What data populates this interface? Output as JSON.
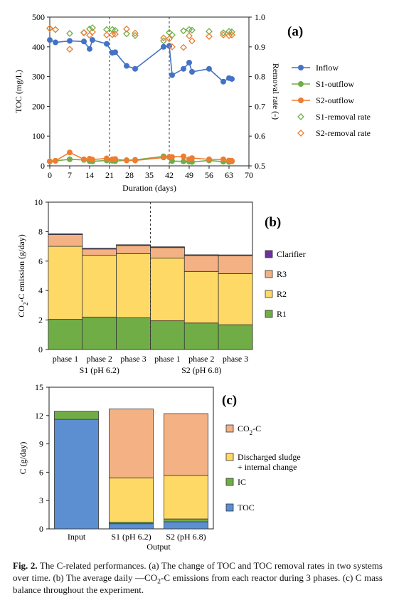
{
  "colors": {
    "inflow": "#4472c4",
    "s1_outflow": "#70ad47",
    "s2_outflow": "#ed7d31",
    "s1_removal": "#70ad47",
    "s2_removal": "#ed7d31",
    "R1": "#70ad47",
    "R2": "#ffd966",
    "R3": "#f4b183",
    "Clarifier": "#7030a0",
    "TOC": "#5b8fd1",
    "IC": "#70ad47",
    "sludge": "#ffd966",
    "CO2C": "#f4b183"
  },
  "chart_data": [
    {
      "type": "scatter",
      "panel": "(a)",
      "xlabel": "Duration (days)",
      "ylabel": "TOC (mg/L)",
      "y2label": "Removal rate (-)",
      "xlim": [
        0,
        70
      ],
      "xticks": [
        "0",
        "7",
        "14",
        "21",
        "28",
        "35",
        "42",
        "49",
        "56",
        "63",
        "70"
      ],
      "ylim": [
        0,
        500
      ],
      "yticks": [
        "0",
        "100",
        "200",
        "300",
        "400",
        "500"
      ],
      "y2lim": [
        0.5,
        1.0
      ],
      "y2ticks": [
        "0.5",
        "0.6",
        "0.7",
        "0.8",
        "0.9",
        "1.0"
      ],
      "phase_lines_x": [
        21,
        42
      ],
      "legend": [
        "Inflow",
        "S1-outflow",
        "S2-outflow",
        "S1-removal rate",
        "S2-removal rate"
      ],
      "series": [
        {
          "name": "Inflow",
          "axis": "left",
          "style": "line-marker",
          "x": [
            0,
            2,
            7,
            12,
            14,
            15,
            20,
            22,
            23,
            27,
            30,
            40,
            42,
            43,
            47,
            49,
            50,
            56,
            61,
            63,
            64
          ],
          "y": [
            423,
            415,
            420,
            418,
            393,
            423,
            410,
            380,
            382,
            336,
            326,
            400,
            403,
            305,
            326,
            347,
            316,
            326,
            283,
            295,
            292
          ]
        },
        {
          "name": "S1-outflow",
          "axis": "left",
          "style": "line-marker",
          "x": [
            0,
            2,
            7,
            12,
            14,
            15,
            20,
            22,
            23,
            27,
            30,
            40,
            42,
            43,
            47,
            49,
            50,
            56,
            61,
            63,
            64
          ],
          "y": [
            15,
            17,
            22,
            20,
            16,
            15,
            18,
            17,
            16,
            19,
            20,
            32,
            29,
            16,
            15,
            14,
            13,
            18,
            14,
            13,
            15
          ]
        },
        {
          "name": "S2-outflow",
          "axis": "left",
          "style": "line-marker",
          "x": [
            0,
            2,
            7,
            12,
            14,
            15,
            20,
            22,
            23,
            27,
            30,
            40,
            42,
            43,
            47,
            49,
            50,
            56,
            61,
            63,
            64
          ],
          "y": [
            15,
            17,
            45,
            22,
            24,
            21,
            25,
            22,
            23,
            18,
            18,
            28,
            30,
            30,
            32,
            22,
            26,
            22,
            22,
            18,
            17
          ]
        },
        {
          "name": "S1-removal rate",
          "axis": "right",
          "style": "diamond",
          "x": [
            0,
            2,
            7,
            12,
            14,
            15,
            20,
            22,
            23,
            27,
            30,
            40,
            42,
            43,
            47,
            49,
            50,
            56,
            61,
            63,
            64
          ],
          "y": [
            0.962,
            0.958,
            0.945,
            0.948,
            0.96,
            0.964,
            0.958,
            0.958,
            0.955,
            0.944,
            0.938,
            0.92,
            0.948,
            0.94,
            0.954,
            0.958,
            0.956,
            0.952,
            0.947,
            0.952,
            0.95
          ]
        },
        {
          "name": "S2-removal rate",
          "axis": "right",
          "style": "diamond",
          "x": [
            0,
            2,
            7,
            12,
            14,
            15,
            20,
            22,
            23,
            27,
            30,
            40,
            42,
            43,
            47,
            49,
            50,
            56,
            61,
            63,
            64
          ],
          "y": [
            0.962,
            0.958,
            0.892,
            0.947,
            0.939,
            0.95,
            0.94,
            0.941,
            0.943,
            0.96,
            0.946,
            0.93,
            0.927,
            0.9,
            0.898,
            0.937,
            0.92,
            0.935,
            0.94,
            0.938,
            0.94
          ]
        }
      ]
    },
    {
      "type": "bar",
      "stacked": true,
      "panel": "(b)",
      "ylabel": "CO₂-C emission (g/day)",
      "ylim": [
        0,
        10
      ],
      "yticks": [
        "0",
        "2",
        "4",
        "6",
        "8",
        "10"
      ],
      "categories": [
        "phase 1",
        "phase 2",
        "phase 3",
        "phase 1",
        "phase 2",
        "phase 3"
      ],
      "groups": [
        "S1 (pH 6.2)",
        "S2 (pH 6.8)"
      ],
      "legend": [
        "Clarifier",
        "R3",
        "R2",
        "R1"
      ],
      "series": [
        {
          "name": "R1",
          "values": [
            2.05,
            2.2,
            2.15,
            1.95,
            1.8,
            1.68
          ]
        },
        {
          "name": "R2",
          "values": [
            4.95,
            4.2,
            4.35,
            4.25,
            3.5,
            3.47
          ]
        },
        {
          "name": "R3",
          "values": [
            0.8,
            0.42,
            0.56,
            0.72,
            1.08,
            1.22
          ]
        },
        {
          "name": "Clarifier",
          "values": [
            0.05,
            0.05,
            0.05,
            0.05,
            0.05,
            0.05
          ]
        }
      ]
    },
    {
      "type": "bar",
      "stacked": true,
      "panel": "(c)",
      "xlabel": "Output",
      "ylabel": "C (g/day)",
      "ylim": [
        0,
        15
      ],
      "yticks": [
        "0",
        "3",
        "6",
        "9",
        "12",
        "15"
      ],
      "categories": [
        "Input",
        "S1 (pH 6.2)",
        "S2 (pH 6.8)"
      ],
      "legend": [
        "CO₂-C",
        "Discharged sludge + internal change",
        "IC",
        "TOC"
      ],
      "series": [
        {
          "name": "TOC",
          "values": [
            11.6,
            0.55,
            0.75
          ]
        },
        {
          "name": "IC",
          "values": [
            0.85,
            0.15,
            0.3
          ]
        },
        {
          "name": "Discharged sludge + internal change",
          "values": [
            0,
            4.7,
            4.6
          ]
        },
        {
          "name": "CO₂-C",
          "values": [
            0,
            7.3,
            6.55
          ]
        }
      ]
    }
  ],
  "texts": {
    "panel_a": "(a)",
    "panel_b": "(b)",
    "panel_c": "(c)",
    "caption_bold": "Fig. 2.",
    "caption_text": " The C-related performances. (a) The change of TOC and TOC removal rates in two systems over time. (b) The average daily —CO₂-C emissions from each reactor during 3 phases. (c) C mass balance throughout the experiment."
  }
}
